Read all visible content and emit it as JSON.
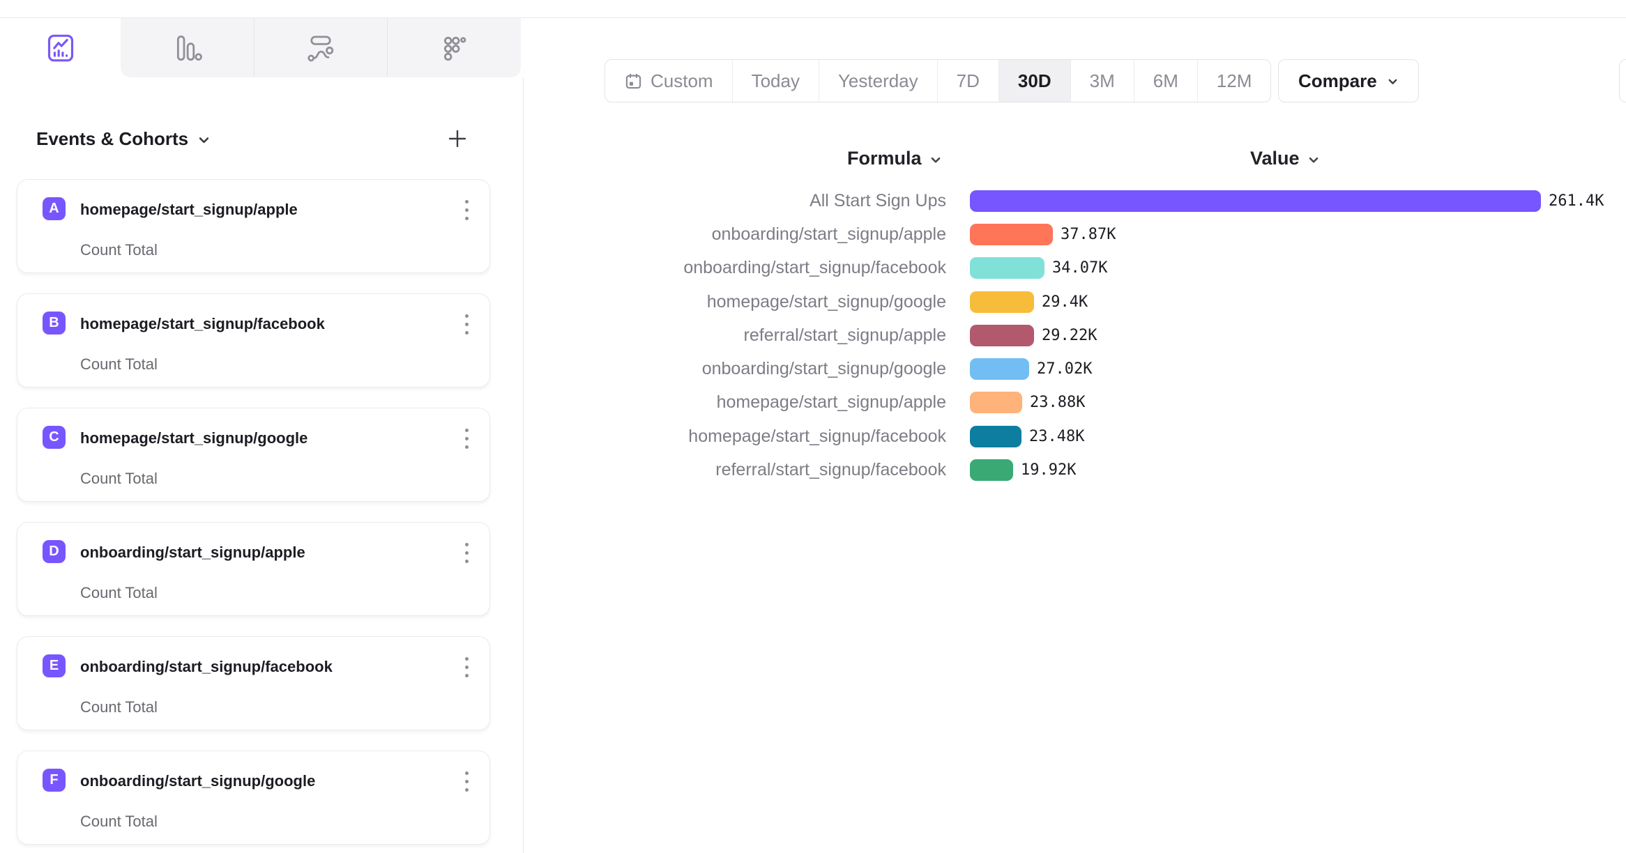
{
  "tabs": [
    {
      "name": "insights-line",
      "active": true
    },
    {
      "name": "bar-chart",
      "active": false
    },
    {
      "name": "flows",
      "active": false
    },
    {
      "name": "retention-grid",
      "active": false
    }
  ],
  "sidebar": {
    "title": "Events & Cohorts",
    "events": [
      {
        "letter": "A",
        "name": "homepage/start_signup/apple",
        "measure": "Count Total"
      },
      {
        "letter": "B",
        "name": "homepage/start_signup/facebook",
        "measure": "Count Total"
      },
      {
        "letter": "C",
        "name": "homepage/start_signup/google",
        "measure": "Count Total"
      },
      {
        "letter": "D",
        "name": "onboarding/start_signup/apple",
        "measure": "Count Total"
      },
      {
        "letter": "E",
        "name": "onboarding/start_signup/facebook",
        "measure": "Count Total"
      },
      {
        "letter": "F",
        "name": "onboarding/start_signup/google",
        "measure": "Count Total"
      }
    ]
  },
  "toolbar": {
    "ranges": [
      {
        "label": "Custom",
        "icon": "calendar"
      },
      {
        "label": "Today"
      },
      {
        "label": "Yesterday"
      },
      {
        "label": "7D"
      },
      {
        "label": "30D"
      },
      {
        "label": "3M"
      },
      {
        "label": "6M"
      },
      {
        "label": "12M"
      }
    ],
    "active_range": "30D",
    "compare_label": "Compare"
  },
  "colors": {
    "accent": "#7856FF",
    "badge": "#7856FF",
    "tab_inactive_bg": "#f4f4f6"
  },
  "chart_data": {
    "type": "bar",
    "orientation": "horizontal",
    "columns": {
      "formula": "Formula",
      "value": "Value"
    },
    "rows": [
      {
        "label": "All Start Sign Ups",
        "value": 261400,
        "display": "261.4K",
        "color": "#7856FF"
      },
      {
        "label": "onboarding/start_signup/apple",
        "value": 37870,
        "display": "37.87K",
        "color": "#FF7557"
      },
      {
        "label": "onboarding/start_signup/facebook",
        "value": 34070,
        "display": "34.07K",
        "color": "#80E1D9"
      },
      {
        "label": "homepage/start_signup/google",
        "value": 29400,
        "display": "29.4K",
        "color": "#F8BC3B"
      },
      {
        "label": "referral/start_signup/apple",
        "value": 29220,
        "display": "29.22K",
        "color": "#B2596E"
      },
      {
        "label": "onboarding/start_signup/google",
        "value": 27020,
        "display": "27.02K",
        "color": "#72BEF4"
      },
      {
        "label": "homepage/start_signup/apple",
        "value": 23880,
        "display": "23.88K",
        "color": "#FFB27A"
      },
      {
        "label": "homepage/start_signup/facebook",
        "value": 23480,
        "display": "23.48K",
        "color": "#0D7EA0"
      },
      {
        "label": "referral/start_signup/facebook",
        "value": 19920,
        "display": "19.92K",
        "color": "#3BA974"
      }
    ],
    "max_value": 261400,
    "legend_position": "none",
    "grid": false
  }
}
